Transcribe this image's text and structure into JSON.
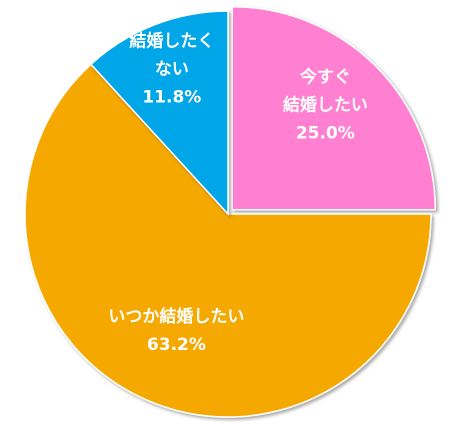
{
  "chart_data": {
    "type": "pie",
    "slices": [
      {
        "label_lines": [
          "今すぐ",
          "結婚したい"
        ],
        "value": 25.0,
        "value_label": "25.0%",
        "color": "#FF7FD0",
        "exploded": true
      },
      {
        "label_lines": [
          "いつか結婚したい"
        ],
        "value": 63.2,
        "value_label": "63.2%",
        "color": "#F5A800",
        "exploded": false
      },
      {
        "label_lines": [
          "結婚したく",
          "ない"
        ],
        "value": 11.8,
        "value_label": "11.8%",
        "color": "#00A6E8",
        "exploded": false
      }
    ],
    "start_angle": "12 o'clock",
    "direction": "clockwise",
    "legend": "none",
    "data_labels": "inside"
  }
}
